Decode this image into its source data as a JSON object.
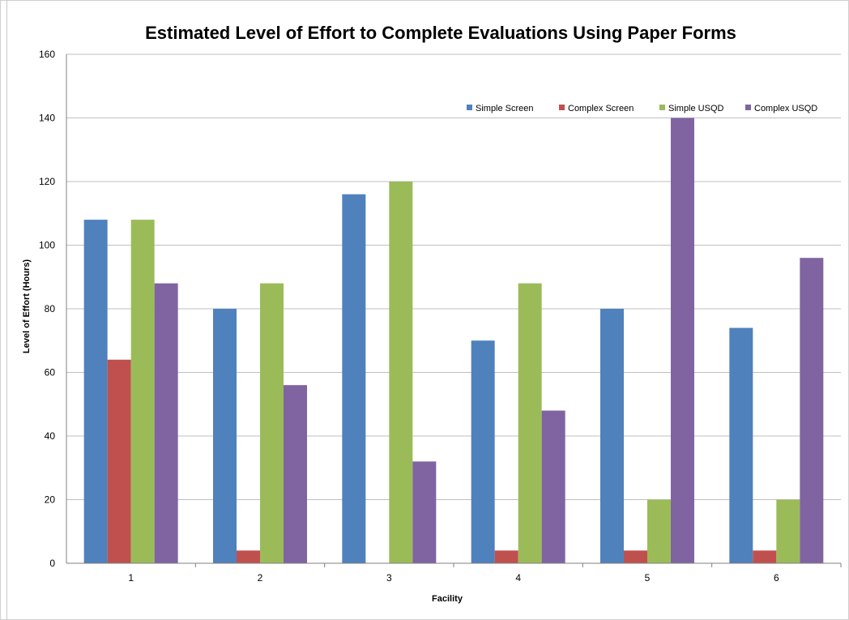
{
  "chart_data": {
    "type": "bar",
    "title": "Estimated Level of Effort to Complete Evaluations Using Paper Forms",
    "xlabel": "Facility",
    "ylabel": "Level of Effort (Hours)",
    "categories": [
      "1",
      "2",
      "3",
      "4",
      "5",
      "6"
    ],
    "ylim": [
      0,
      160
    ],
    "yticks": [
      0,
      20,
      40,
      60,
      80,
      100,
      120,
      140,
      160
    ],
    "grid": true,
    "legend_position": "top-right",
    "series": [
      {
        "name": "Simple Screen",
        "color": "#4f81bd",
        "values": [
          108,
          80,
          116,
          70,
          80,
          74
        ]
      },
      {
        "name": "Complex Screen",
        "color": "#c0504d",
        "values": [
          64,
          4,
          0,
          4,
          4,
          4
        ]
      },
      {
        "name": "Simple USQD",
        "color": "#9bbb59",
        "values": [
          108,
          88,
          120,
          88,
          20,
          20
        ]
      },
      {
        "name": "Complex USQD",
        "color": "#8064a2",
        "values": [
          88,
          56,
          32,
          48,
          140,
          96
        ]
      }
    ]
  }
}
